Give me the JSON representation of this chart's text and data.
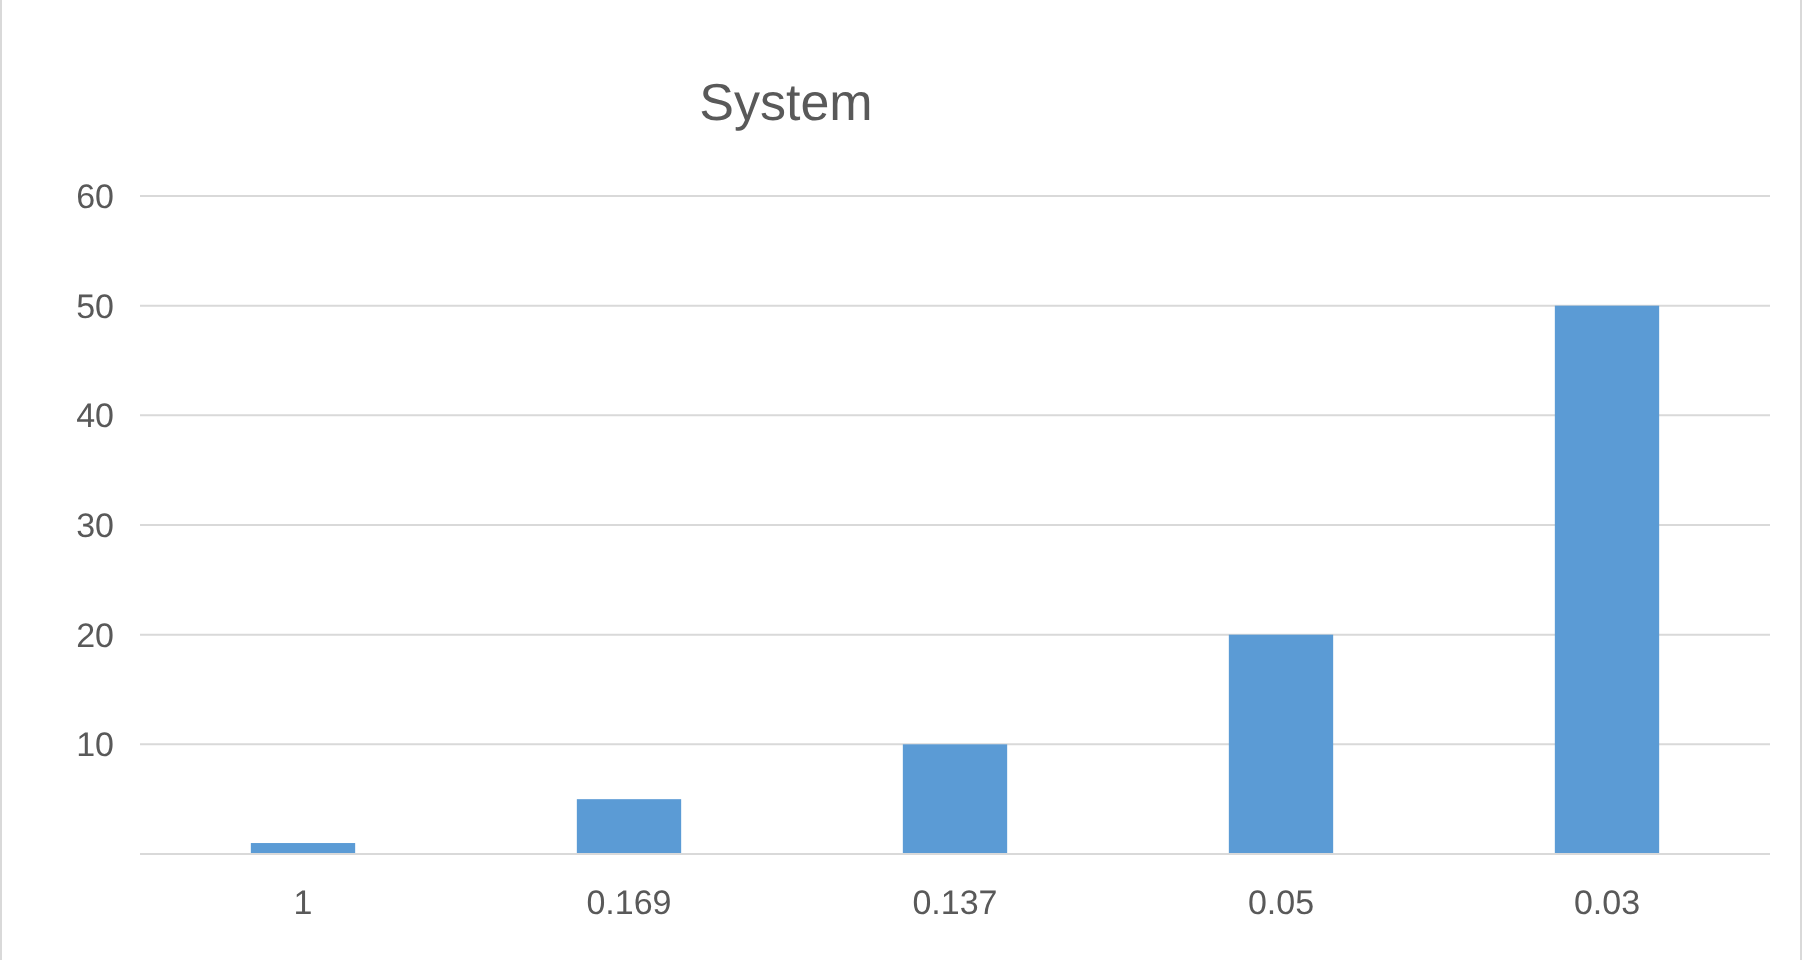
{
  "chart_data": {
    "type": "bar",
    "title": "System",
    "categories": [
      "1",
      "0.169",
      "0.137",
      "0.05",
      "0.03"
    ],
    "values": [
      1,
      5,
      10,
      20,
      50
    ],
    "color": "#5b9bd5",
    "ylim": [
      0,
      60
    ],
    "yticks": [
      {
        "value": 0,
        "label": null
      },
      10,
      20,
      30,
      40,
      50,
      60
    ],
    "grid": "y"
  }
}
